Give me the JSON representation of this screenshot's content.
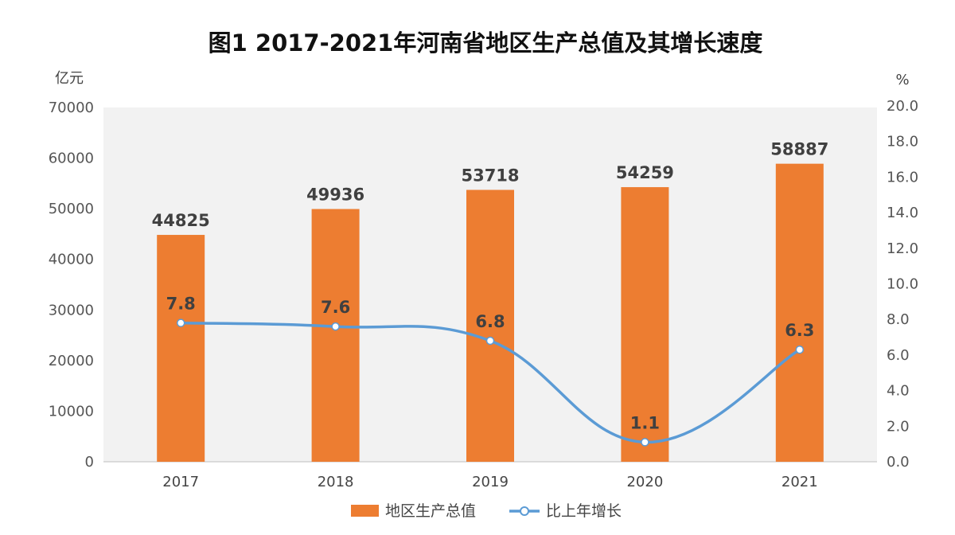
{
  "chart_data": {
    "type": "bar+line",
    "title": "图1  2017-2021年河南省地区生产总值及其增长速度",
    "ylabel_left": "亿元",
    "ylabel_right": "%",
    "categories": [
      "2017",
      "2018",
      "2019",
      "2020",
      "2021"
    ],
    "ylim_left": [
      0,
      70000
    ],
    "ylim_right": [
      0,
      20
    ],
    "yticks_left": [
      "0",
      "10000",
      "20000",
      "30000",
      "40000",
      "50000",
      "60000",
      "70000"
    ],
    "yticks_right": [
      "0.0",
      "2.0",
      "4.0",
      "6.0",
      "8.0",
      "10.0",
      "12.0",
      "14.0",
      "16.0",
      "18.0",
      "20.0"
    ],
    "series": [
      {
        "name": "地区生产总值",
        "type": "bar",
        "axis": "left",
        "values": [
          44825,
          49936,
          53718,
          54259,
          58887
        ],
        "labels": [
          "44825",
          "49936",
          "53718",
          "54259",
          "58887"
        ],
        "color": "#ED7D31"
      },
      {
        "name": "比上年增长",
        "type": "line",
        "axis": "right",
        "values": [
          7.8,
          7.6,
          6.8,
          1.1,
          6.3
        ],
        "labels": [
          "7.8",
          "7.6",
          "6.8",
          "1.1",
          "6.3"
        ],
        "color": "#5B9BD5"
      }
    ],
    "legend": "bottom",
    "grid": false,
    "plot_background": "#F2F2F2"
  }
}
